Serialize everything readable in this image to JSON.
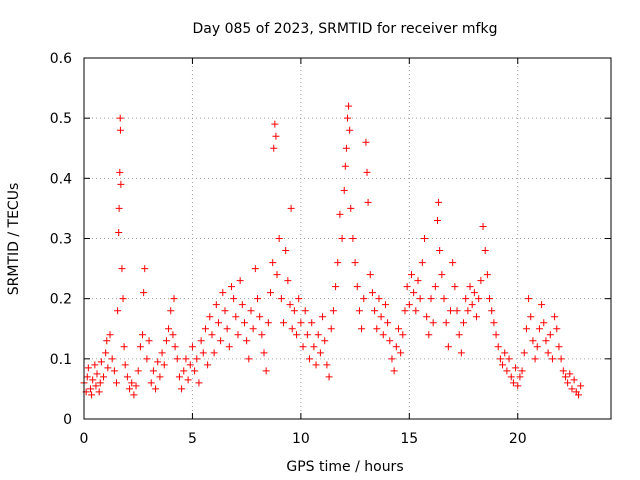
{
  "chart_data": {
    "type": "scatter",
    "title": "Day 085 of 2023, SRMTID for receiver mfkg",
    "xlabel": "GPS time / hours",
    "ylabel": "SRMTID / TECUs",
    "xlim": [
      0,
      24.3
    ],
    "ylim": [
      0,
      0.6
    ],
    "xticks": [
      0,
      5,
      10,
      15,
      20
    ],
    "xtick_labels": [
      "0",
      "5",
      "10",
      "15",
      "20"
    ],
    "yticks": [
      0,
      0.1,
      0.2,
      0.3,
      0.4,
      0.5,
      0.6
    ],
    "ytick_labels": [
      "0",
      "0.1",
      "0.2",
      "0.3",
      "0.4",
      "0.5",
      "0.6"
    ],
    "grid": true,
    "marker": "+",
    "marker_color": "#ff0000",
    "series": [
      {
        "name": "SRMTID",
        "points": [
          [
            0.0,
            0.06
          ],
          [
            0.1,
            0.045
          ],
          [
            0.15,
            0.07
          ],
          [
            0.2,
            0.085
          ],
          [
            0.3,
            0.05
          ],
          [
            0.35,
            0.04
          ],
          [
            0.4,
            0.065
          ],
          [
            0.5,
            0.09
          ],
          [
            0.55,
            0.055
          ],
          [
            0.6,
            0.075
          ],
          [
            0.7,
            0.045
          ],
          [
            0.75,
            0.06
          ],
          [
            0.8,
            0.095
          ],
          [
            0.9,
            0.07
          ],
          [
            1.0,
            0.11
          ],
          [
            1.05,
            0.13
          ],
          [
            1.1,
            0.085
          ],
          [
            1.2,
            0.14
          ],
          [
            1.3,
            0.1
          ],
          [
            1.4,
            0.08
          ],
          [
            1.5,
            0.06
          ],
          [
            1.55,
            0.18
          ],
          [
            1.6,
            0.31
          ],
          [
            1.62,
            0.35
          ],
          [
            1.65,
            0.41
          ],
          [
            1.67,
            0.5
          ],
          [
            1.68,
            0.48
          ],
          [
            1.7,
            0.39
          ],
          [
            1.75,
            0.25
          ],
          [
            1.8,
            0.2
          ],
          [
            1.85,
            0.12
          ],
          [
            1.9,
            0.09
          ],
          [
            2.0,
            0.07
          ],
          [
            2.1,
            0.05
          ],
          [
            2.2,
            0.06
          ],
          [
            2.3,
            0.04
          ],
          [
            2.4,
            0.055
          ],
          [
            2.5,
            0.08
          ],
          [
            2.6,
            0.12
          ],
          [
            2.7,
            0.14
          ],
          [
            2.75,
            0.21
          ],
          [
            2.8,
            0.25
          ],
          [
            2.9,
            0.1
          ],
          [
            3.0,
            0.13
          ],
          [
            3.1,
            0.06
          ],
          [
            3.2,
            0.08
          ],
          [
            3.3,
            0.05
          ],
          [
            3.4,
            0.095
          ],
          [
            3.5,
            0.07
          ],
          [
            3.6,
            0.11
          ],
          [
            3.7,
            0.09
          ],
          [
            3.8,
            0.13
          ],
          [
            3.9,
            0.15
          ],
          [
            4.0,
            0.18
          ],
          [
            4.1,
            0.14
          ],
          [
            4.15,
            0.2
          ],
          [
            4.2,
            0.12
          ],
          [
            4.3,
            0.1
          ],
          [
            4.4,
            0.07
          ],
          [
            4.5,
            0.05
          ],
          [
            4.6,
            0.08
          ],
          [
            4.7,
            0.1
          ],
          [
            4.8,
            0.065
          ],
          [
            4.9,
            0.09
          ],
          [
            5.0,
            0.12
          ],
          [
            5.1,
            0.08
          ],
          [
            5.2,
            0.1
          ],
          [
            5.3,
            0.06
          ],
          [
            5.4,
            0.13
          ],
          [
            5.5,
            0.11
          ],
          [
            5.6,
            0.15
          ],
          [
            5.7,
            0.09
          ],
          [
            5.8,
            0.17
          ],
          [
            5.9,
            0.14
          ],
          [
            6.0,
            0.11
          ],
          [
            6.1,
            0.19
          ],
          [
            6.2,
            0.16
          ],
          [
            6.3,
            0.13
          ],
          [
            6.4,
            0.21
          ],
          [
            6.5,
            0.18
          ],
          [
            6.6,
            0.15
          ],
          [
            6.7,
            0.12
          ],
          [
            6.8,
            0.22
          ],
          [
            6.9,
            0.2
          ],
          [
            7.0,
            0.17
          ],
          [
            7.1,
            0.14
          ],
          [
            7.2,
            0.23
          ],
          [
            7.3,
            0.19
          ],
          [
            7.4,
            0.16
          ],
          [
            7.5,
            0.13
          ],
          [
            7.6,
            0.1
          ],
          [
            7.7,
            0.18
          ],
          [
            7.8,
            0.15
          ],
          [
            7.9,
            0.25
          ],
          [
            8.0,
            0.2
          ],
          [
            8.1,
            0.17
          ],
          [
            8.2,
            0.14
          ],
          [
            8.3,
            0.11
          ],
          [
            8.4,
            0.08
          ],
          [
            8.5,
            0.16
          ],
          [
            8.6,
            0.21
          ],
          [
            8.7,
            0.26
          ],
          [
            8.75,
            0.45
          ],
          [
            8.8,
            0.49
          ],
          [
            8.85,
            0.47
          ],
          [
            8.9,
            0.24
          ],
          [
            9.0,
            0.3
          ],
          [
            9.1,
            0.2
          ],
          [
            9.2,
            0.16
          ],
          [
            9.3,
            0.28
          ],
          [
            9.4,
            0.23
          ],
          [
            9.5,
            0.19
          ],
          [
            9.55,
            0.35
          ],
          [
            9.6,
            0.15
          ],
          [
            9.7,
            0.18
          ],
          [
            9.8,
            0.14
          ],
          [
            9.9,
            0.2
          ],
          [
            10.0,
            0.16
          ],
          [
            10.1,
            0.12
          ],
          [
            10.2,
            0.18
          ],
          [
            10.3,
            0.14
          ],
          [
            10.4,
            0.1
          ],
          [
            10.5,
            0.16
          ],
          [
            10.6,
            0.12
          ],
          [
            10.7,
            0.09
          ],
          [
            10.8,
            0.14
          ],
          [
            10.9,
            0.11
          ],
          [
            11.0,
            0.17
          ],
          [
            11.1,
            0.13
          ],
          [
            11.2,
            0.09
          ],
          [
            11.3,
            0.07
          ],
          [
            11.4,
            0.15
          ],
          [
            11.5,
            0.18
          ],
          [
            11.6,
            0.22
          ],
          [
            11.7,
            0.26
          ],
          [
            11.8,
            0.34
          ],
          [
            11.9,
            0.3
          ],
          [
            12.0,
            0.38
          ],
          [
            12.05,
            0.42
          ],
          [
            12.1,
            0.45
          ],
          [
            12.15,
            0.5
          ],
          [
            12.2,
            0.52
          ],
          [
            12.25,
            0.48
          ],
          [
            12.3,
            0.35
          ],
          [
            12.4,
            0.3
          ],
          [
            12.5,
            0.26
          ],
          [
            12.6,
            0.22
          ],
          [
            12.7,
            0.18
          ],
          [
            12.8,
            0.15
          ],
          [
            12.9,
            0.2
          ],
          [
            13.0,
            0.46
          ],
          [
            13.05,
            0.41
          ],
          [
            13.1,
            0.36
          ],
          [
            13.2,
            0.24
          ],
          [
            13.3,
            0.21
          ],
          [
            13.4,
            0.18
          ],
          [
            13.5,
            0.15
          ],
          [
            13.6,
            0.2
          ],
          [
            13.7,
            0.17
          ],
          [
            13.8,
            0.14
          ],
          [
            13.9,
            0.19
          ],
          [
            14.0,
            0.16
          ],
          [
            14.1,
            0.13
          ],
          [
            14.2,
            0.1
          ],
          [
            14.3,
            0.08
          ],
          [
            14.4,
            0.12
          ],
          [
            14.5,
            0.15
          ],
          [
            14.6,
            0.11
          ],
          [
            14.7,
            0.14
          ],
          [
            14.8,
            0.18
          ],
          [
            14.9,
            0.22
          ],
          [
            15.0,
            0.19
          ],
          [
            15.1,
            0.24
          ],
          [
            15.2,
            0.21
          ],
          [
            15.3,
            0.18
          ],
          [
            15.4,
            0.23
          ],
          [
            15.5,
            0.2
          ],
          [
            15.6,
            0.26
          ],
          [
            15.7,
            0.3
          ],
          [
            15.8,
            0.17
          ],
          [
            15.9,
            0.14
          ],
          [
            16.0,
            0.2
          ],
          [
            16.1,
            0.16
          ],
          [
            16.2,
            0.22
          ],
          [
            16.3,
            0.33
          ],
          [
            16.35,
            0.36
          ],
          [
            16.4,
            0.28
          ],
          [
            16.5,
            0.24
          ],
          [
            16.6,
            0.2
          ],
          [
            16.7,
            0.16
          ],
          [
            16.8,
            0.12
          ],
          [
            16.9,
            0.18
          ],
          [
            17.0,
            0.26
          ],
          [
            17.1,
            0.22
          ],
          [
            17.2,
            0.18
          ],
          [
            17.3,
            0.14
          ],
          [
            17.4,
            0.11
          ],
          [
            17.5,
            0.16
          ],
          [
            17.6,
            0.2
          ],
          [
            17.7,
            0.18
          ],
          [
            17.8,
            0.22
          ],
          [
            17.9,
            0.19
          ],
          [
            18.0,
            0.21
          ],
          [
            18.1,
            0.17
          ],
          [
            18.2,
            0.2
          ],
          [
            18.3,
            0.23
          ],
          [
            18.4,
            0.32
          ],
          [
            18.5,
            0.28
          ],
          [
            18.6,
            0.24
          ],
          [
            18.7,
            0.2
          ],
          [
            18.8,
            0.18
          ],
          [
            18.9,
            0.16
          ],
          [
            19.0,
            0.14
          ],
          [
            19.1,
            0.12
          ],
          [
            19.2,
            0.1
          ],
          [
            19.3,
            0.09
          ],
          [
            19.4,
            0.11
          ],
          [
            19.5,
            0.08
          ],
          [
            19.6,
            0.1
          ],
          [
            19.7,
            0.07
          ],
          [
            19.8,
            0.06
          ],
          [
            19.9,
            0.085
          ],
          [
            20.0,
            0.055
          ],
          [
            20.1,
            0.07
          ],
          [
            20.2,
            0.08
          ],
          [
            20.3,
            0.11
          ],
          [
            20.4,
            0.15
          ],
          [
            20.5,
            0.2
          ],
          [
            20.6,
            0.17
          ],
          [
            20.7,
            0.13
          ],
          [
            20.8,
            0.1
          ],
          [
            20.9,
            0.12
          ],
          [
            21.0,
            0.15
          ],
          [
            21.1,
            0.19
          ],
          [
            21.2,
            0.16
          ],
          [
            21.3,
            0.13
          ],
          [
            21.4,
            0.11
          ],
          [
            21.5,
            0.14
          ],
          [
            21.6,
            0.1
          ],
          [
            21.7,
            0.17
          ],
          [
            21.8,
            0.15
          ],
          [
            21.9,
            0.12
          ],
          [
            22.0,
            0.1
          ],
          [
            22.1,
            0.08
          ],
          [
            22.2,
            0.07
          ],
          [
            22.3,
            0.06
          ],
          [
            22.4,
            0.075
          ],
          [
            22.5,
            0.05
          ],
          [
            22.6,
            0.065
          ],
          [
            22.7,
            0.045
          ],
          [
            22.8,
            0.04
          ],
          [
            22.9,
            0.055
          ]
        ]
      }
    ]
  }
}
